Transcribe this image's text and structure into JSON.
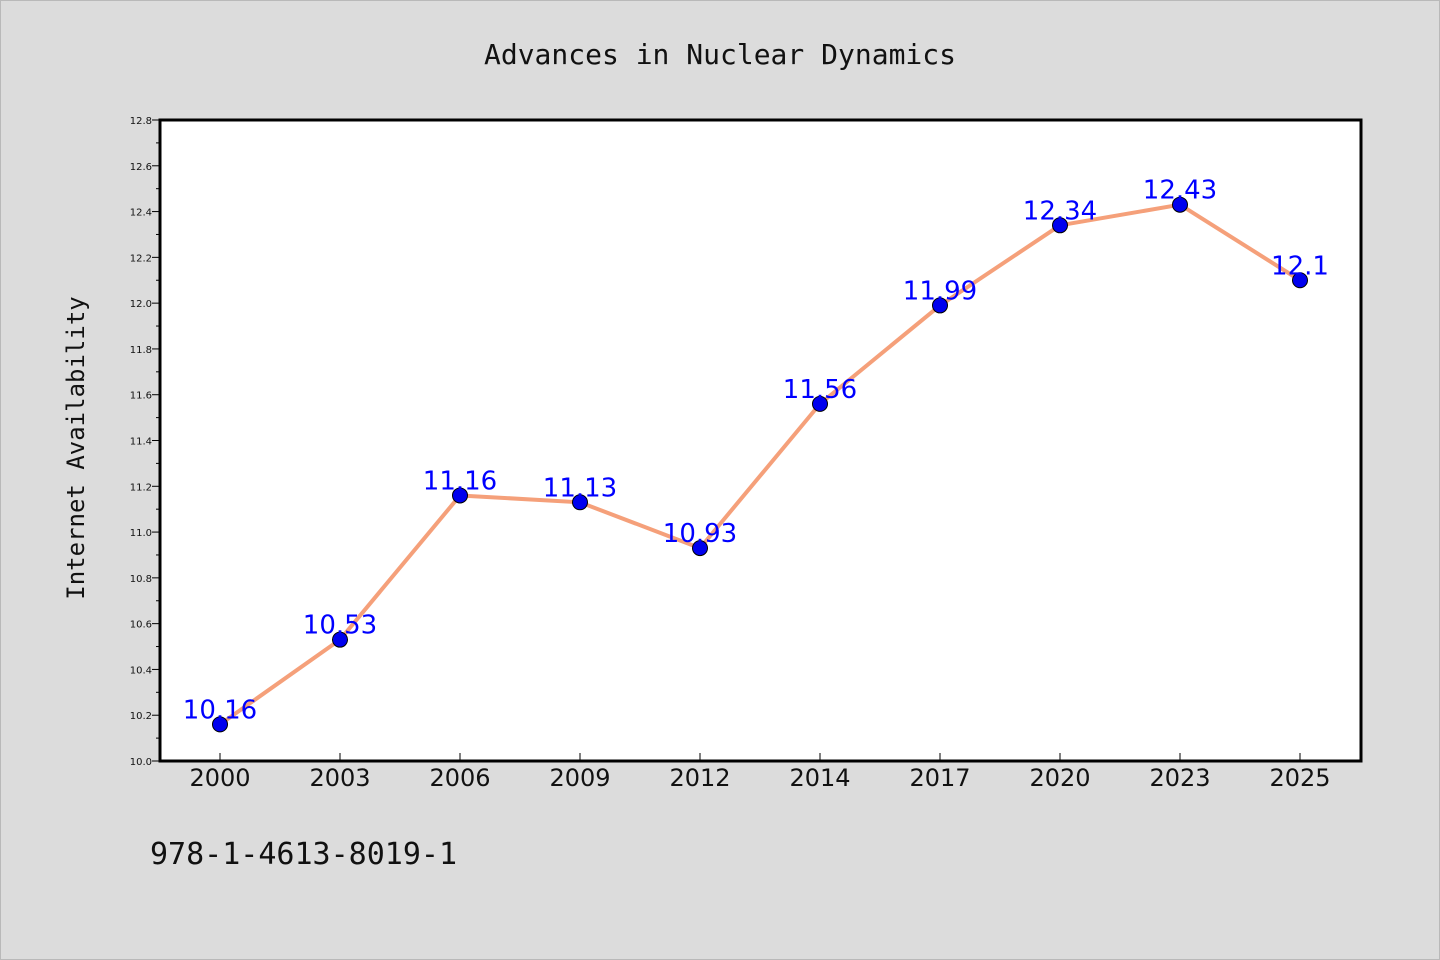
{
  "chart_data": {
    "type": "line",
    "title": "Advances in Nuclear Dynamics",
    "xlabel": "",
    "ylabel": "Internet Availability",
    "categories": [
      "2000",
      "2003",
      "2006",
      "2009",
      "2012",
      "2014",
      "2017",
      "2020",
      "2023",
      "2025"
    ],
    "series": [
      {
        "values": [
          10.16,
          10.53,
          11.16,
          11.13,
          10.93,
          11.56,
          11.99,
          12.34,
          12.43,
          12.1
        ],
        "data_labels": [
          "10.16",
          "10.53",
          "11.16",
          "11.13",
          "10.93",
          "11.56",
          "11.99",
          "12.34",
          "12.43",
          "12.1"
        ],
        "line_color": "#f5a07a",
        "marker_color": "#0000ee"
      }
    ],
    "ylim": [
      10.0,
      12.8
    ],
    "yticks": [
      "10.0",
      "10.2",
      "10.4",
      "10.6",
      "10.8",
      "11.0",
      "11.2",
      "11.4",
      "11.6",
      "11.8",
      "12.0",
      "12.2",
      "12.4",
      "12.6",
      "12.8"
    ],
    "grid": false,
    "legend": "none"
  },
  "footer": {
    "isbn": "978-1-4613-8019-1"
  },
  "colors": {
    "background": "#dcdcdc",
    "plot_background": "#ffffff",
    "line": "#f5a07a",
    "marker": "#0000ee",
    "data_label": "#0000ff"
  }
}
